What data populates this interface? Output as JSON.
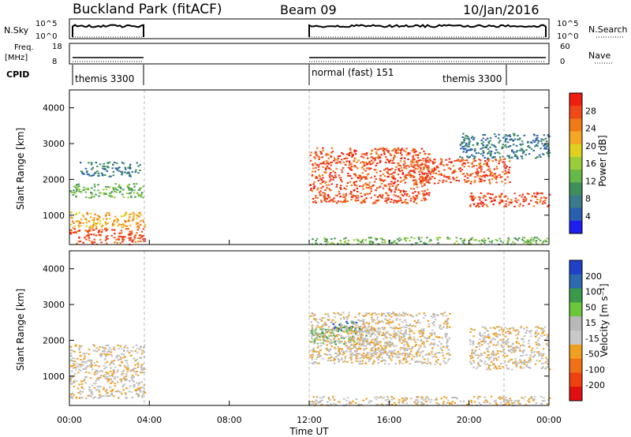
{
  "header": {
    "station": "Buckland Park (fitACF)",
    "beam": "Beam 09",
    "date": "10/Jan/2016"
  },
  "panels": {
    "nsky": {
      "label": "N.Sky",
      "tick_top": "10^5",
      "tick_bottom": "10^0"
    },
    "nsearch": {
      "label": "N.Search",
      "tick_top": "10^5",
      "tick_bottom": "10^0"
    },
    "freq": {
      "label_line1": "Freq.",
      "label_line2": "[MHz]",
      "tick_top": "18",
      "tick_bottom": "8"
    },
    "nave": {
      "label": "Nave",
      "tick_top": "60",
      "tick_bottom": "0"
    },
    "cpid": {
      "label": "CPID",
      "segments": [
        {
          "name": "themis 3300",
          "start_h": 0.0,
          "end_h": 3.75
        },
        {
          "name": "normal (fast) 151",
          "start_h": 12.0,
          "end_h": 21.75
        },
        {
          "name": "themis 3300",
          "start_h": 19.5,
          "end_h": 21.75
        }
      ]
    }
  },
  "chart_data": [
    {
      "type": "heatmap",
      "name": "power",
      "xlabel": "Time UT",
      "ylabel": "Slant Range [km]",
      "xlim_hours": [
        0,
        24
      ],
      "ylim_km": [
        180,
        4500
      ],
      "y_ticks": [
        "1000",
        "2000",
        "3000",
        "4000"
      ],
      "colorbar": {
        "label": "Power [dB]",
        "ticks": [
          "4",
          "8",
          "12",
          "16",
          "20",
          "24",
          "28"
        ],
        "range": [
          0,
          30
        ],
        "colors": [
          "#1e1ef0",
          "#2a5fb0",
          "#3a7a8a",
          "#3f8f5a",
          "#66b84a",
          "#9acd3a",
          "#e0d020",
          "#f5a623",
          "#f07a18",
          "#f04818",
          "#f01e10"
        ]
      },
      "data_gaps_hours": [
        [
          3.75,
          12.0
        ]
      ],
      "regions": [
        {
          "t": [
            0,
            3.75
          ],
          "r": [
            200,
            650
          ],
          "level": "strong"
        },
        {
          "t": [
            0,
            3.75
          ],
          "r": [
            650,
            1100
          ],
          "level": "medium"
        },
        {
          "t": [
            0,
            3.75
          ],
          "r": [
            1500,
            1900
          ],
          "level": "moderate"
        },
        {
          "t": [
            0.5,
            3.5
          ],
          "r": [
            2100,
            2500
          ],
          "level": "weak"
        },
        {
          "t": [
            12,
            18
          ],
          "r": [
            1350,
            2900
          ],
          "level": "strong"
        },
        {
          "t": [
            17,
            22
          ],
          "r": [
            1900,
            2600
          ],
          "level": "strong"
        },
        {
          "t": [
            20,
            24
          ],
          "r": [
            1250,
            1650
          ],
          "level": "strong"
        },
        {
          "t": [
            19.5,
            24
          ],
          "r": [
            2600,
            3300
          ],
          "level": "weak"
        },
        {
          "t": [
            12,
            24
          ],
          "r": [
            200,
            400
          ],
          "level": "moderate"
        }
      ]
    },
    {
      "type": "heatmap",
      "name": "velocity",
      "xlabel": "Time UT",
      "ylabel": "Slant Range [km]",
      "xlim_hours": [
        0,
        24
      ],
      "ylim_km": [
        180,
        4500
      ],
      "x_ticks": [
        "00:00",
        "04:00",
        "08:00",
        "12:00",
        "16:00",
        "20:00",
        "00:00"
      ],
      "y_ticks": [
        "1000",
        "2000",
        "3000",
        "4000"
      ],
      "colorbar": {
        "label": "Velocity [m s⁻¹]",
        "ticks": [
          "200",
          "100",
          "50",
          "15",
          "-15",
          "-50",
          "-100",
          "-200"
        ],
        "range": [
          -250,
          250
        ],
        "colors": [
          "#2040c8",
          "#2c6ab0",
          "#3a9a4a",
          "#6cc63c",
          "#b8b8b8",
          "#c8c8c8",
          "#f0a020",
          "#f07018",
          "#f04010",
          "#e01010"
        ]
      },
      "data_gaps_hours": [
        [
          3.75,
          12.0
        ]
      ],
      "regions": [
        {
          "t": [
            13,
            14.5
          ],
          "r": [
            2250,
            2550
          ],
          "velocity": 200
        },
        {
          "t": [
            12,
            15
          ],
          "r": [
            1900,
            2350
          ],
          "velocity": 60
        },
        {
          "t": [
            12,
            19
          ],
          "r": [
            1350,
            2800
          ],
          "velocity": 0
        },
        {
          "t": [
            14,
            17
          ],
          "r": [
            1500,
            2400
          ],
          "velocity": -40
        },
        {
          "t": [
            20,
            24
          ],
          "r": [
            1200,
            2400
          ],
          "velocity": 0
        },
        {
          "t": [
            0,
            3.75
          ],
          "r": [
            400,
            1900
          ],
          "velocity": 0
        },
        {
          "t": [
            12,
            24
          ],
          "r": [
            200,
            450
          ],
          "velocity": -30
        }
      ]
    }
  ]
}
